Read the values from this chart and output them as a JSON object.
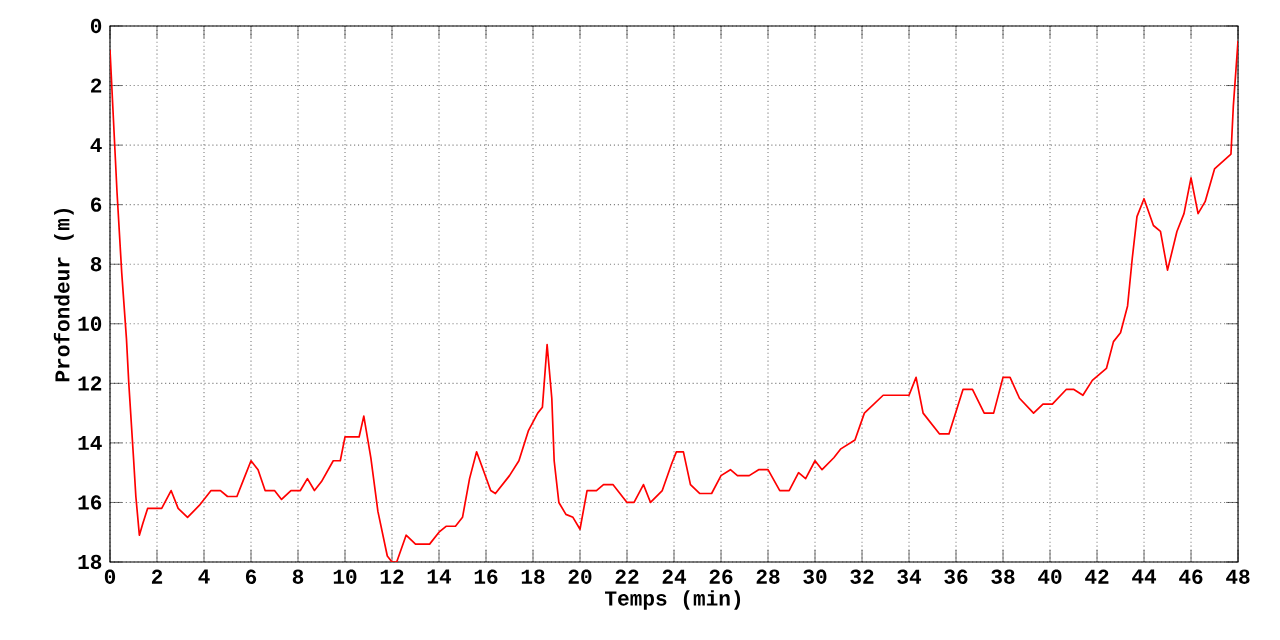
{
  "chart_data": {
    "type": "line",
    "xlabel": "Temps (min)",
    "ylabel": "Profondeur (m)",
    "xlim": [
      0,
      48
    ],
    "ylim": [
      18,
      0
    ],
    "xticks": [
      0,
      2,
      4,
      6,
      8,
      10,
      12,
      14,
      16,
      18,
      20,
      22,
      24,
      26,
      28,
      30,
      32,
      34,
      36,
      38,
      40,
      42,
      44,
      46,
      48
    ],
    "yticks": [
      0,
      2,
      4,
      6,
      8,
      10,
      12,
      14,
      16,
      18
    ],
    "grid": true,
    "marker": "none",
    "line_style": "solid",
    "series": [
      {
        "color": "#ff0000",
        "x": [
          0,
          0.1,
          0.2,
          0.3,
          0.5,
          0.7,
          0.8,
          1.0,
          1.1,
          1.25,
          1.4,
          1.6,
          2.2,
          2.6,
          2.9,
          3.3,
          3.8,
          4.3,
          4.7,
          5.0,
          5.4,
          5.7,
          6.0,
          6.3,
          6.6,
          7.0,
          7.3,
          7.7,
          8.1,
          8.4,
          8.7,
          9.0,
          9.5,
          9.8,
          10.0,
          10.6,
          10.8,
          11.1,
          11.4,
          11.8,
          12.0,
          12.2,
          12.6,
          13.0,
          13.6,
          14.0,
          14.3,
          14.7,
          15.0,
          15.3,
          15.6,
          16.2,
          16.4,
          17.0,
          17.4,
          17.8,
          18.2,
          18.4,
          18.6,
          18.8,
          18.9,
          19.1,
          19.4,
          19.7,
          20.0,
          20.3,
          20.7,
          21.0,
          21.4,
          22.0,
          22.3,
          22.7,
          23.0,
          23.5,
          23.9,
          24.1,
          24.4,
          24.7,
          25.1,
          25.6,
          26.0,
          26.4,
          26.7,
          27.2,
          27.6,
          28.0,
          28.5,
          28.9,
          29.3,
          29.6,
          30.0,
          30.3,
          30.8,
          31.1,
          31.7,
          32.1,
          32.9,
          34.0,
          34.3,
          34.6,
          35.3,
          35.7,
          36.3,
          36.7,
          37.2,
          37.6,
          38.0,
          38.3,
          38.7,
          39.3,
          39.7,
          40.1,
          40.7,
          41.0,
          41.4,
          41.8,
          42.4,
          42.7,
          43.0,
          43.3,
          43.5,
          43.7,
          44.0,
          44.4,
          44.7,
          45.0,
          45.4,
          45.7,
          46.0,
          46.3,
          46.6,
          47.0,
          47.7,
          47.8,
          48.0
        ],
        "values": [
          0.8,
          2.4,
          4,
          5.6,
          8.3,
          10.5,
          12,
          14.5,
          15.8,
          17.1,
          16.7,
          16.2,
          16.2,
          15.6,
          16.2,
          16.5,
          16.1,
          15.6,
          15.6,
          15.8,
          15.8,
          15.2,
          14.6,
          14.9,
          15.6,
          15.6,
          15.9,
          15.6,
          15.6,
          15.2,
          15.6,
          15.3,
          14.6,
          14.6,
          13.8,
          13.8,
          13.1,
          14.5,
          16.3,
          17.8,
          18,
          18,
          17.1,
          17.4,
          17.4,
          17.0,
          16.8,
          16.8,
          16.5,
          15.2,
          14.3,
          15.6,
          15.7,
          15.1,
          14.6,
          13.6,
          13.0,
          12.8,
          10.7,
          12.5,
          14.6,
          16.0,
          16.4,
          16.5,
          16.9,
          15.6,
          15.6,
          15.4,
          15.4,
          16.0,
          16.0,
          15.4,
          16.0,
          15.6,
          14.7,
          14.3,
          14.3,
          15.4,
          15.7,
          15.7,
          15.1,
          14.9,
          15.1,
          15.1,
          14.9,
          14.9,
          15.6,
          15.6,
          15.0,
          15.2,
          14.6,
          14.9,
          14.5,
          14.2,
          13.9,
          13.0,
          12.4,
          12.4,
          11.8,
          13.0,
          13.7,
          13.7,
          12.2,
          12.2,
          13.0,
          13.0,
          11.8,
          11.8,
          12.5,
          13.0,
          12.7,
          12.7,
          12.2,
          12.2,
          12.4,
          11.9,
          11.5,
          10.6,
          10.3,
          9.4,
          7.8,
          6.4,
          5.8,
          6.7,
          6.9,
          8.2,
          6.9,
          6.3,
          5.1,
          6.3,
          5.9,
          4.8,
          4.3,
          2.7,
          0.5
        ]
      }
    ]
  }
}
